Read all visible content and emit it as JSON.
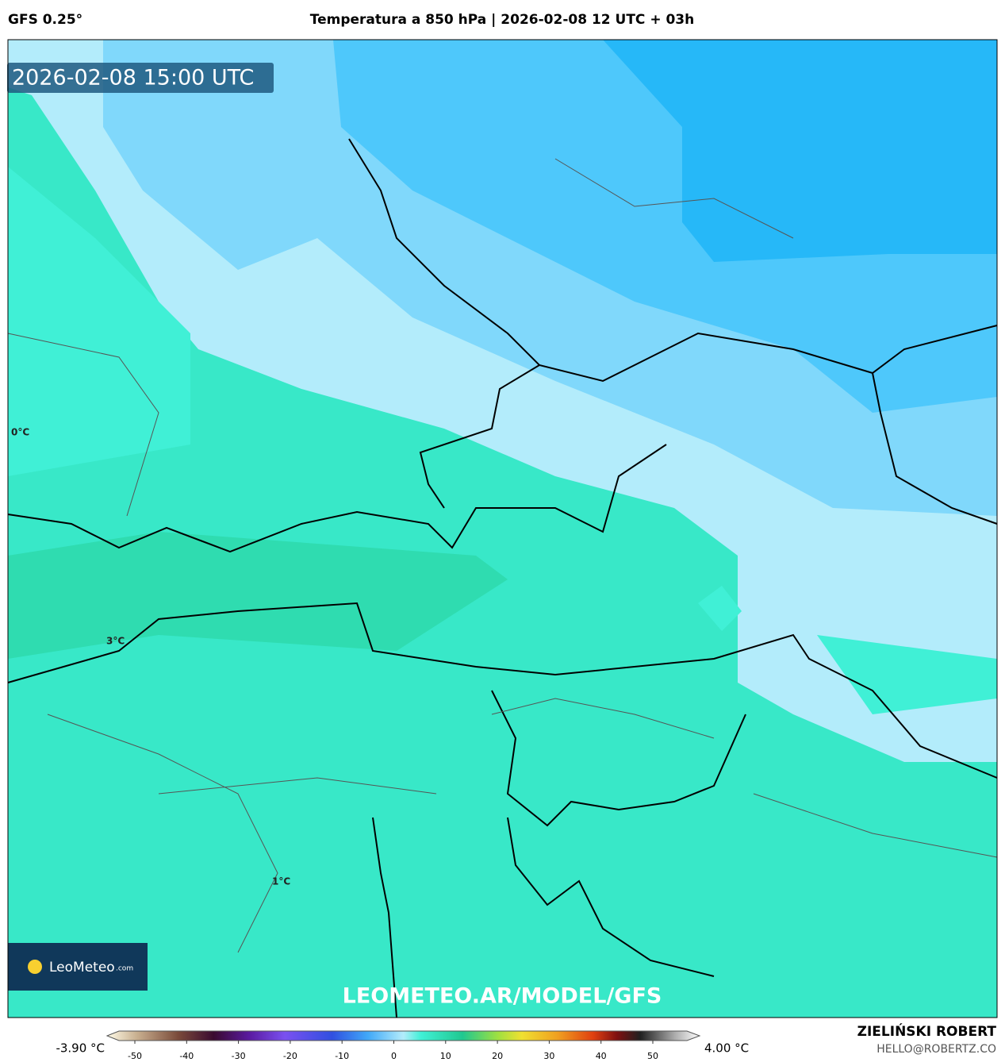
{
  "header": {
    "model": "GFS 0.25°",
    "title": "Temperatura a 850 hPa | 2026-02-08 12 UTC + 03h"
  },
  "timestamp": "2026-02-08 15:00 UTC",
  "contour_labels": [
    "0°C",
    "3°C",
    "1°C"
  ],
  "logo": {
    "name": "LeoMeteo",
    "suffix": ".com"
  },
  "watermark": "LEOMETEO.AR/MODEL/GFS",
  "colorbar": {
    "min_label": "-3.90 °C",
    "max_label": "4.00 °C",
    "ticks": [
      -50,
      -40,
      -30,
      -20,
      -10,
      0,
      10,
      20,
      30,
      40,
      50
    ]
  },
  "author": {
    "name": "ZIELIŃSKI ROBERT",
    "email": "HELLO@ROBERTZ.CO"
  }
}
